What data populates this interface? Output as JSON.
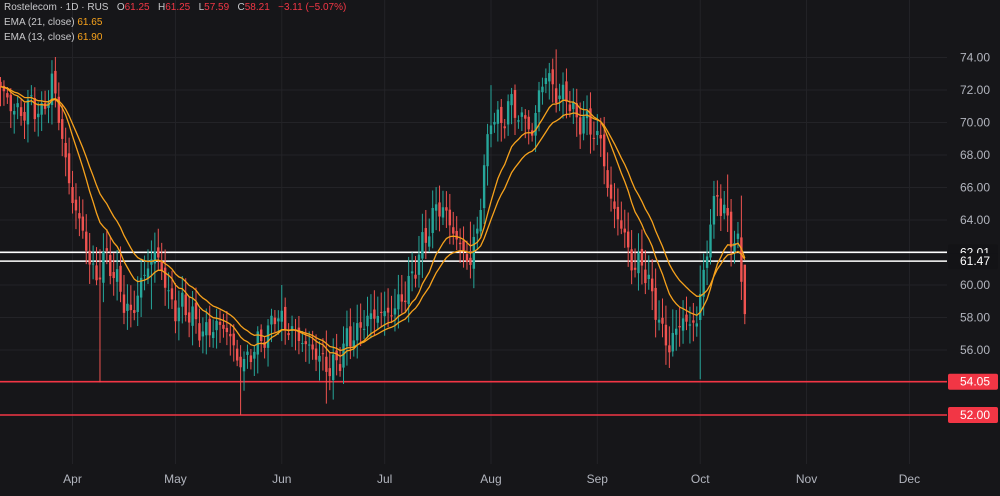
{
  "chart_data": {
    "type": "candlestick",
    "symbol_line": "Rostelecom · 1D · RUS",
    "ohlc": {
      "o_label": "O",
      "o_value": "61.25",
      "h_label": "H",
      "h_value": "61.25",
      "l_label": "L",
      "l_value": "57.59",
      "c_label": "C",
      "c_value": "58.21",
      "change": "−3.11 (−5.07%)"
    },
    "indicators": [
      {
        "label": "EMA (21, close)",
        "value": "61.65",
        "color": "#f7a21c"
      },
      {
        "label": "EMA (13, close)",
        "value": "61.90",
        "color": "#f7a21c"
      }
    ],
    "x_ticks": [
      "Apr",
      "May",
      "Jun",
      "Jul",
      "Aug",
      "Sep",
      "Oct",
      "Nov",
      "Dec"
    ],
    "y_ticks": [
      "56.00",
      "58.00",
      "60.00",
      "62.00",
      "64.00",
      "66.00",
      "68.00",
      "70.00",
      "72.00",
      "74.00"
    ],
    "ylim": [
      51.0,
      76.0
    ],
    "horizontal_levels": [
      {
        "value": 62.01,
        "label": "62.01",
        "color": "#ffffff"
      },
      {
        "value": 61.47,
        "label": "61.47",
        "color": "#ffffff"
      },
      {
        "value": 54.05,
        "label": "54.05",
        "color": "#f23645"
      },
      {
        "value": 52.0,
        "label": "52.00",
        "color": "#f23645"
      }
    ],
    "x_anchors": [
      {
        "index": 0,
        "date": "2024-03-11"
      },
      {
        "index": 21,
        "date": "2024-04-01"
      },
      {
        "index": 51,
        "date": "2024-05-01"
      },
      {
        "index": 82,
        "date": "2024-06-01"
      },
      {
        "index": 112,
        "date": "2024-07-01"
      },
      {
        "index": 143,
        "date": "2024-08-01"
      },
      {
        "index": 174,
        "date": "2024-09-01"
      },
      {
        "index": 204,
        "date": "2024-10-01"
      },
      {
        "index": 235,
        "date": "2024-11-01"
      },
      {
        "index": 265,
        "date": "2024-12-01"
      }
    ],
    "close_path": [
      [
        0,
        72.2
      ],
      [
        3,
        71.0
      ],
      [
        6,
        70.5
      ],
      [
        9,
        71.2
      ],
      [
        12,
        70.4
      ],
      [
        15,
        72.5
      ],
      [
        17,
        70.5
      ],
      [
        19,
        67.5
      ],
      [
        21,
        65.2
      ],
      [
        23,
        64.0
      ],
      [
        26,
        61.5
      ],
      [
        28,
        60.2
      ],
      [
        30,
        61.8
      ],
      [
        33,
        60.8
      ],
      [
        36,
        59.0
      ],
      [
        38,
        58.0
      ],
      [
        40,
        59.5
      ],
      [
        43,
        61.2
      ],
      [
        45,
        62.0
      ],
      [
        47,
        61.0
      ],
      [
        49,
        59.3
      ],
      [
        51,
        58.4
      ],
      [
        53,
        58.8
      ],
      [
        56,
        58.0
      ],
      [
        59,
        57.0
      ],
      [
        62,
        57.4
      ],
      [
        65,
        57.5
      ],
      [
        67,
        56.8
      ],
      [
        69,
        55.4
      ],
      [
        71,
        55.2
      ],
      [
        73,
        55.8
      ],
      [
        76,
        56.7
      ],
      [
        78,
        57.0
      ],
      [
        80,
        58.3
      ],
      [
        83,
        57.5
      ],
      [
        86,
        57.0
      ],
      [
        88,
        56.5
      ],
      [
        91,
        56.0
      ],
      [
        94,
        55.3
      ],
      [
        96,
        54.8
      ],
      [
        99,
        55.5
      ],
      [
        101,
        56.7
      ],
      [
        104,
        57.0
      ],
      [
        106,
        57.8
      ],
      [
        108,
        58.0
      ],
      [
        111,
        58.3
      ],
      [
        113,
        58.2
      ],
      [
        115,
        58.6
      ],
      [
        118,
        59.5
      ],
      [
        120,
        60.5
      ],
      [
        123,
        62.5
      ],
      [
        125,
        63.5
      ],
      [
        127,
        64.8
      ],
      [
        129,
        64.7
      ],
      [
        131,
        63.8
      ],
      [
        133,
        62.8
      ],
      [
        135,
        62.0
      ],
      [
        137,
        61.4
      ],
      [
        139,
        63.5
      ],
      [
        141,
        67.0
      ],
      [
        143,
        70.5
      ],
      [
        145,
        70.0
      ],
      [
        147,
        70.3
      ],
      [
        149,
        71.4
      ],
      [
        151,
        70.2
      ],
      [
        153,
        70.3
      ],
      [
        155,
        69.2
      ],
      [
        157,
        71.8
      ],
      [
        159,
        73.0
      ],
      [
        161,
        72.2
      ],
      [
        163,
        71.5
      ],
      [
        165,
        71.8
      ],
      [
        167,
        70.5
      ],
      [
        169,
        70.0
      ],
      [
        171,
        70.2
      ],
      [
        173,
        69.2
      ],
      [
        175,
        69.0
      ],
      [
        177,
        66.0
      ],
      [
        179,
        64.5
      ],
      [
        181,
        63.8
      ],
      [
        183,
        62.0
      ],
      [
        185,
        61.0
      ],
      [
        187,
        61.5
      ],
      [
        189,
        60.0
      ],
      [
        191,
        58.6
      ],
      [
        193,
        57.0
      ],
      [
        195,
        56.2
      ],
      [
        197,
        57.2
      ],
      [
        199,
        58.0
      ],
      [
        201,
        57.4
      ],
      [
        203,
        58.0
      ],
      [
        205,
        60.5
      ],
      [
        207,
        64.0
      ],
      [
        209,
        65.5
      ],
      [
        211,
        64.5
      ],
      [
        213,
        63.0
      ],
      [
        215,
        62.5
      ],
      [
        217,
        58.2
      ]
    ],
    "spikes": [
      [
        15,
        73.2,
        70.1
      ],
      [
        29,
        62.2,
        54.0
      ],
      [
        44,
        62.1,
        58.5
      ],
      [
        55,
        59.3,
        57.2
      ],
      [
        66,
        58.4,
        56.3
      ],
      [
        70,
        56.3,
        52.0
      ],
      [
        82,
        60.0,
        56.8
      ],
      [
        95,
        57.2,
        52.7
      ],
      [
        128,
        65.6,
        63.3
      ],
      [
        137,
        63.9,
        60.8
      ],
      [
        143,
        72.3,
        69.1
      ],
      [
        162,
        74.5,
        71.5
      ],
      [
        196,
        58.5,
        55.6
      ],
      [
        204,
        61.2,
        54.2
      ],
      [
        212,
        66.8,
        63.7
      ],
      [
        216,
        65.5,
        60.5
      ]
    ],
    "ema21_color": "#f7a21c",
    "ema13_color": "#f7a21c",
    "up_color": "#26a69a",
    "down_color": "#ef5350"
  }
}
